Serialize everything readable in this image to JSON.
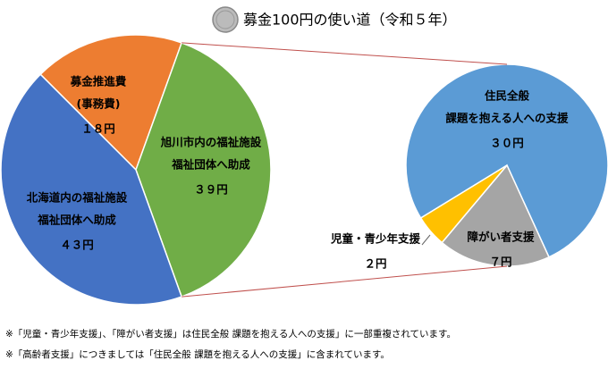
{
  "chart_data": {
    "type": "pie-of-pie",
    "title": "募金100円の使い道（令和５年）",
    "pie": {
      "categories": [
        [
          "募金推進費",
          "(事務費)"
        ],
        [
          "旭川市内の福祉施設",
          "福祉団体へ助成"
        ],
        [
          "北海道内の福祉施設",
          "福祉団体へ助成"
        ]
      ],
      "values": [
        18,
        39,
        43
      ],
      "value_labels": [
        "１８円",
        "３９円",
        "４３円"
      ],
      "colors": [
        "#ed7d31",
        "#70ad47",
        "#4472c4"
      ]
    },
    "detail_of": 1,
    "detail": {
      "categories": [
        [
          "住民全般",
          "課題を抱える人への支援"
        ],
        [
          "障がい者支援"
        ],
        [
          "児童・青少年支援"
        ]
      ],
      "values": [
        30,
        7,
        2
      ],
      "value_labels": [
        "３０円",
        "７円",
        "２円"
      ],
      "colors": [
        "#5b9bd5",
        "#a5a5a5",
        "#ffc000"
      ]
    },
    "notes": [
      "※「児童・青少年支援」、「障がい者支援」は住民全般 課題を抱える人への支援」に一部重複されています。",
      "※「高齢者支援」につきましては「住民全般 課題を抱える人への支援」に含まれています。"
    ]
  }
}
